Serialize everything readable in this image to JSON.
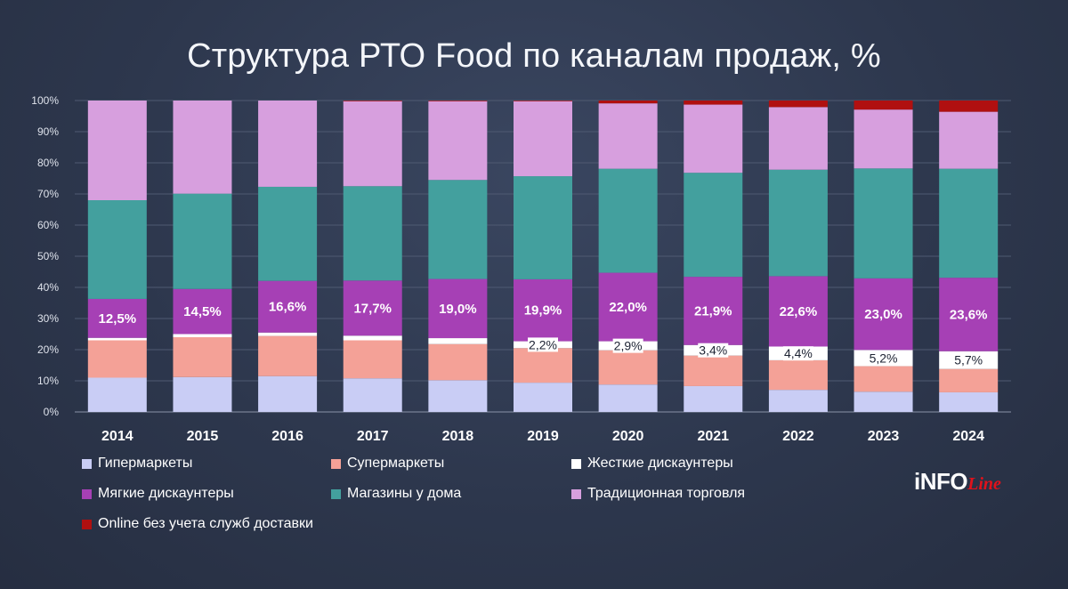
{
  "title": "Структура РТО Food по каналам продаж, %",
  "logo": {
    "main": "iNFO",
    "script": "Line"
  },
  "chart_data": {
    "type": "bar",
    "stacked": true,
    "title": "Структура РТО Food по каналам продаж, %",
    "xlabel": "",
    "ylabel": "",
    "ylim": [
      0,
      100
    ],
    "y_ticks": [
      "0%",
      "10%",
      "20%",
      "30%",
      "40%",
      "50%",
      "60%",
      "70%",
      "80%",
      "90%",
      "100%"
    ],
    "grid": true,
    "legend_position": "bottom",
    "categories": [
      "2014",
      "2015",
      "2016",
      "2017",
      "2018",
      "2019",
      "2020",
      "2021",
      "2022",
      "2023",
      "2024"
    ],
    "series": [
      {
        "name": "Гипермаркеты",
        "color": "#c9cdf5",
        "values": [
          11.0,
          11.2,
          11.5,
          10.8,
          10.2,
          9.4,
          8.8,
          8.3,
          7.1,
          6.5,
          6.3
        ]
      },
      {
        "name": "Супермаркеты",
        "color": "#f4a197",
        "values": [
          12.0,
          12.8,
          12.9,
          12.2,
          11.6,
          11.1,
          11.0,
          9.8,
          9.5,
          8.2,
          7.5
        ]
      },
      {
        "name": "Жесткие дискаунтеры",
        "color": "#ffffff",
        "values": [
          0.8,
          1.0,
          1.1,
          1.5,
          1.9,
          2.2,
          2.9,
          3.4,
          4.4,
          5.2,
          5.7
        ]
      },
      {
        "name": "Мягкие дискаунтеры",
        "color": "#a640b5",
        "values": [
          12.5,
          14.5,
          16.6,
          17.7,
          19.0,
          19.9,
          22.0,
          21.9,
          22.6,
          23.0,
          23.6
        ]
      },
      {
        "name": "Магазины у дома",
        "color": "#43a09e",
        "values": [
          31.7,
          30.6,
          30.2,
          30.3,
          31.8,
          33.1,
          33.4,
          33.4,
          34.2,
          35.3,
          35.0
        ]
      },
      {
        "name": "Традиционная торговля",
        "color": "#d79fde",
        "values": [
          32.0,
          29.9,
          27.7,
          27.3,
          25.3,
          24.1,
          21.0,
          21.9,
          20.1,
          18.9,
          18.3
        ]
      },
      {
        "name": "Online без учета служб доставки",
        "color": "#b01010",
        "values": [
          0.0,
          0.0,
          0.0,
          0.2,
          0.2,
          0.2,
          0.9,
          1.3,
          2.1,
          2.9,
          3.6
        ]
      }
    ],
    "data_labels": {
      "Мягкие дискаунтеры": [
        "12,5%",
        "14,5%",
        "16,6%",
        "17,7%",
        "19,0%",
        "19,9%",
        "22,0%",
        "21,9%",
        "22,6%",
        "23,0%",
        "23,6%"
      ],
      "Жесткие дискаунтеры": [
        null,
        null,
        null,
        null,
        null,
        "2,2%",
        "2,9%",
        "3,4%",
        "4,4%",
        "5,2%",
        "5,7%"
      ]
    }
  }
}
